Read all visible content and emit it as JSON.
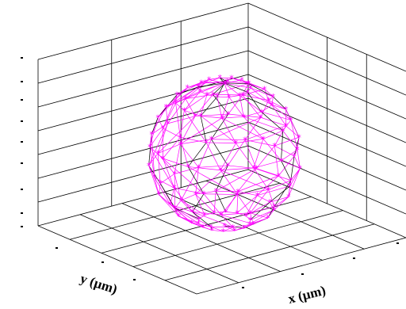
{
  "chart_data": {
    "type": "scatter",
    "projection": "3d",
    "xlabel": "x (µm)",
    "ylabel": "y (µm)",
    "zlabel": "",
    "grid": true,
    "title": "",
    "legend": "none",
    "series": [
      {
        "marker": "star",
        "style": "wireframe-mesh",
        "color": "#ff00ff",
        "shape": "sphere",
        "mesh_color": "#000000"
      }
    ]
  }
}
